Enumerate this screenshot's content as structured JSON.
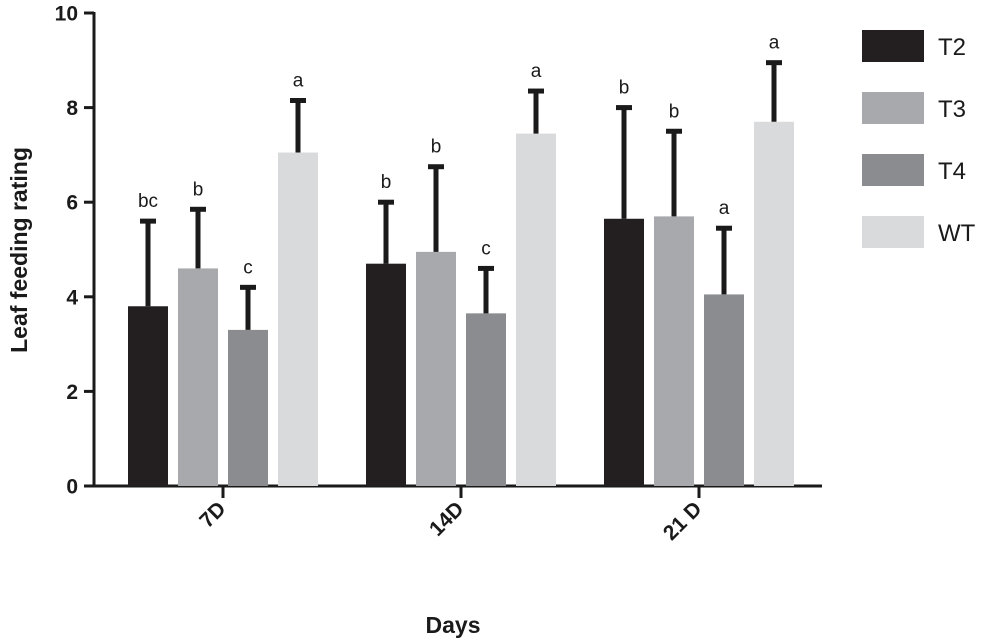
{
  "chart_data": {
    "type": "bar",
    "title": "",
    "xlabel": "Days",
    "ylabel": "Leaf feeding rating",
    "ylim": [
      0,
      10
    ],
    "yticks": [
      "0",
      "2",
      "4",
      "6",
      "8",
      "10"
    ],
    "categories": [
      "7D",
      "14D",
      "21 D"
    ],
    "series": [
      {
        "name": "T2",
        "color": "#231f20",
        "values": [
          3.8,
          4.7,
          5.65
        ],
        "errors": [
          1.8,
          1.3,
          2.35
        ],
        "sig": [
          "bc",
          "b",
          "b"
        ]
      },
      {
        "name": "T3",
        "color": "#a7a9ac",
        "values": [
          4.6,
          4.95,
          5.7
        ],
        "errors": [
          1.25,
          1.8,
          1.8
        ],
        "sig": [
          "b",
          "b",
          "b"
        ]
      },
      {
        "name": "T4",
        "color": "#8a8c8f",
        "values": [
          3.3,
          3.65,
          4.05
        ],
        "errors": [
          0.9,
          0.95,
          1.4
        ],
        "sig": [
          "c",
          "c",
          "a"
        ]
      },
      {
        "name": "WT",
        "color": "#d9dadb",
        "values": [
          7.05,
          7.45,
          7.7
        ],
        "errors": [
          1.1,
          0.9,
          1.25
        ],
        "sig": [
          "a",
          "a",
          "a"
        ]
      }
    ],
    "legend_position": "top-right"
  }
}
